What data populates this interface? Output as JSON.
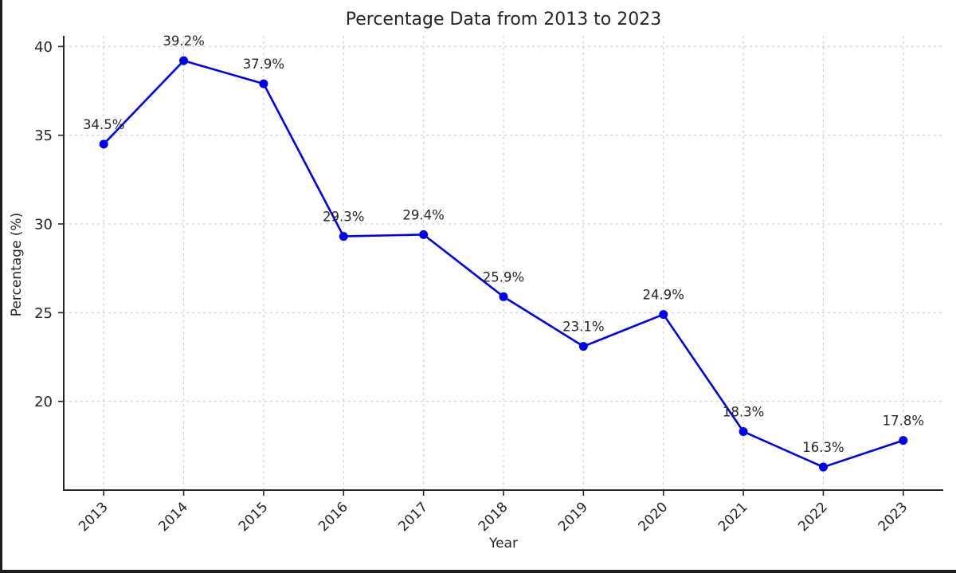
{
  "chart_data": {
    "type": "line",
    "title": "Percentage Data from 2013 to 2023",
    "xlabel": "Year",
    "ylabel": "Percentage (%)",
    "categories": [
      "2013",
      "2014",
      "2015",
      "2016",
      "2017",
      "2018",
      "2019",
      "2020",
      "2021",
      "2022",
      "2023"
    ],
    "series": [
      {
        "name": "percentage",
        "values": [
          34.5,
          39.2,
          37.9,
          29.3,
          29.4,
          25.9,
          23.1,
          24.9,
          18.3,
          16.3,
          17.8
        ],
        "point_labels": [
          "34.5%",
          "39.2%",
          "37.9%",
          "29.3%",
          "29.4%",
          "25.9%",
          "23.1%",
          "24.9%",
          "18.3%",
          "16.3%",
          "17.8%"
        ]
      }
    ],
    "yticks": [
      20,
      25,
      30,
      35,
      40
    ],
    "ylim": [
      15.0,
      40.6
    ],
    "xlim": [
      -0.5,
      10.5
    ],
    "grid": true,
    "grid_style": "dashed",
    "legend": "none",
    "colors": {
      "line": "#0000f0",
      "marker": "#0000f0",
      "grid": "#cccccc",
      "spine": "#262626",
      "text": "#262626"
    }
  }
}
